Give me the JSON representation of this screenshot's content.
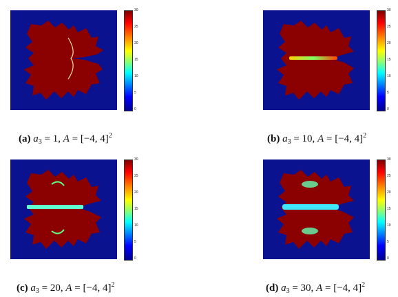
{
  "colorbar": {
    "ticks": [
      "30",
      "25",
      "20",
      "15",
      "10",
      "5",
      "0"
    ]
  },
  "panels": [
    {
      "letter": "(a)",
      "var": "a",
      "sub": "3",
      "eq1": " = 1, ",
      "A": "A",
      "eq2": " = [−4, 4]",
      "sup": "2"
    },
    {
      "letter": "(b)",
      "var": "a",
      "sub": "3",
      "eq1": " = 10, ",
      "A": "A",
      "eq2": " = [−4, 4]",
      "sup": "2"
    },
    {
      "letter": "(c)",
      "var": "a",
      "sub": "3",
      "eq1": " = 20, ",
      "A": "A",
      "eq2": " = [−4, 4]",
      "sup": "2"
    },
    {
      "letter": "(d)",
      "var": "a",
      "sub": "3",
      "eq1": " = 30, ",
      "A": "A",
      "eq2": " = [−4, 4]",
      "sup": "2"
    }
  ]
}
